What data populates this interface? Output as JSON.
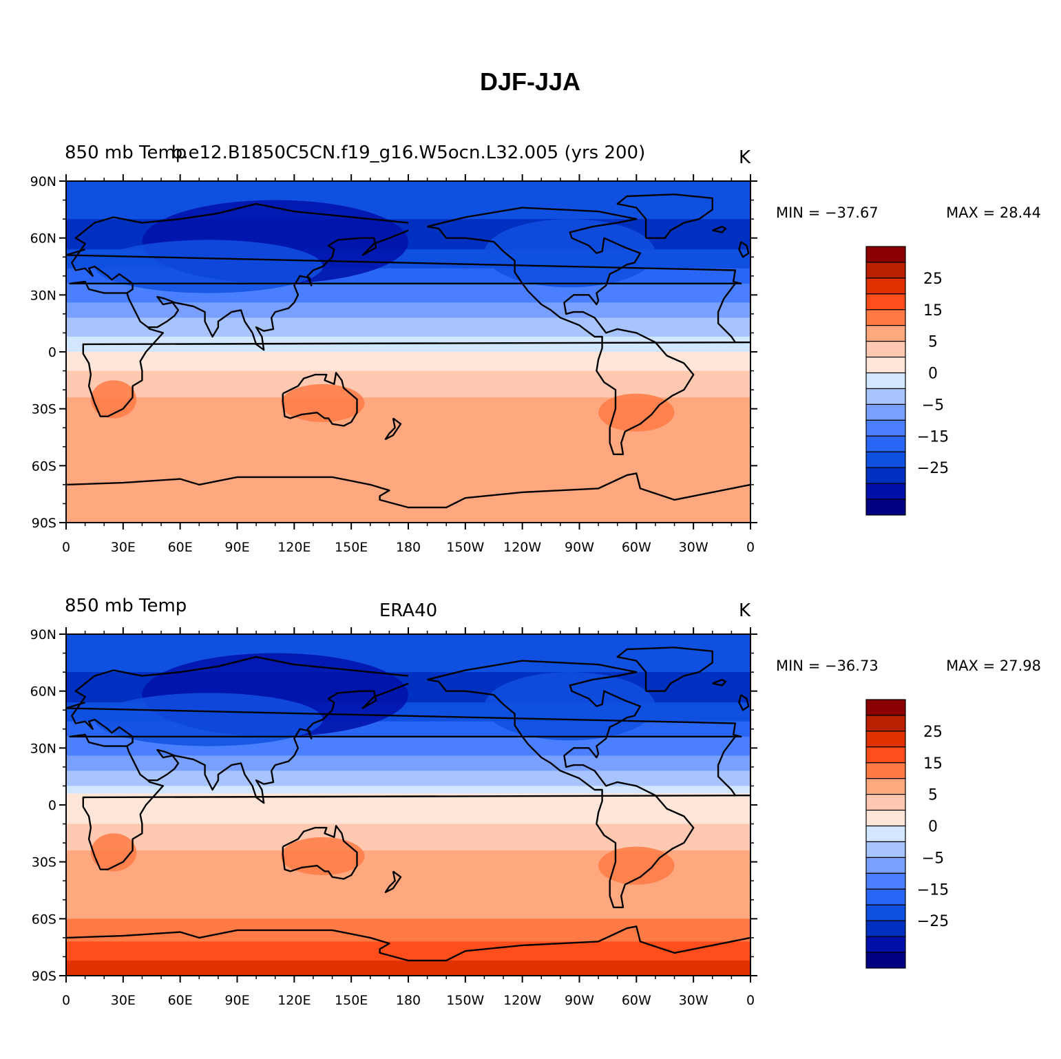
{
  "figure": {
    "title": "DJF-JJA"
  },
  "colors": {
    "levels_palette": [
      "#000080",
      "#0010a8",
      "#0030c0",
      "#1050e0",
      "#2a66f5",
      "#4a80ff",
      "#7aa0ff",
      "#a8c4ff",
      "#d2e6ff",
      "#ffe6d8",
      "#ffc8b0",
      "#ffa880",
      "#ff7a45",
      "#ff4e1c",
      "#e03200",
      "#b82000",
      "#8a0000"
    ],
    "no_data": "#ffffff",
    "coastline": "#000000"
  },
  "colorbar": {
    "labels": [
      "25",
      "15",
      "5",
      "0",
      "−5",
      "−15",
      "−25"
    ]
  },
  "axes": {
    "lat_labels": [
      "90N",
      "60N",
      "30N",
      "0",
      "30S",
      "60S",
      "90S"
    ],
    "lon_labels": [
      "0",
      "30E",
      "60E",
      "90E",
      "120E",
      "150E",
      "180",
      "150W",
      "120W",
      "90W",
      "60W",
      "30W",
      "0"
    ]
  },
  "panels": [
    {
      "left_string": "850 mb Temp",
      "center_string": "b.e12.B1850C5CN.f19_g16.W5ocn.L32.005 (yrs 200)",
      "units": "K",
      "min_label": "MIN = −37.67",
      "max_label": "MAX =   28.44"
    },
    {
      "left_string": "850 mb Temp",
      "center_string": "ERA40",
      "units": "K",
      "min_label": "MIN = −36.73",
      "max_label": "MAX =   27.98"
    }
  ],
  "chart_data": [
    {
      "type": "heatmap",
      "title": "DJF-JJA",
      "subtitle": "b.e12.B1850C5CN.f19_g16.W5ocn.L32.005 (yrs 200)",
      "variable": "850 mb Temp",
      "units": "K",
      "min": -37.67,
      "max": 28.44,
      "contour_levels": [
        -35,
        -30,
        -25,
        -20,
        -15,
        -10,
        -5,
        -2,
        0,
        2,
        5,
        10,
        15,
        20,
        25,
        30
      ],
      "lat_range": [
        -90,
        90
      ],
      "lon_range": [
        0,
        360
      ],
      "zonal_profile": {
        "lat": [
          80,
          60,
          40,
          20,
          5,
          -10,
          -30,
          -50,
          -70
        ],
        "value": [
          -22,
          -28,
          -18,
          -6,
          -1,
          2,
          6,
          5,
          8
        ]
      }
    },
    {
      "type": "heatmap",
      "title": "DJF-JJA",
      "subtitle": "ERA40",
      "variable": "850 mb Temp",
      "units": "K",
      "min": -36.73,
      "max": 27.98,
      "contour_levels": [
        -35,
        -30,
        -25,
        -20,
        -15,
        -10,
        -5,
        -2,
        0,
        2,
        5,
        10,
        15,
        20,
        25,
        30
      ],
      "lat_range": [
        -90,
        90
      ],
      "lon_range": [
        0,
        360
      ],
      "zonal_profile": {
        "lat": [
          80,
          60,
          40,
          20,
          5,
          -10,
          -30,
          -50,
          -75,
          -85
        ],
        "value": [
          -22,
          -28,
          -18,
          -6,
          0,
          2,
          6,
          6,
          16,
          22
        ]
      }
    }
  ]
}
